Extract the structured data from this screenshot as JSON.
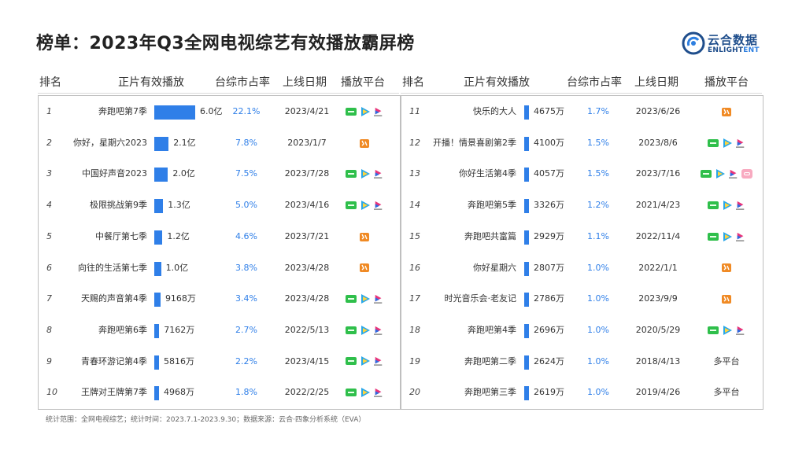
{
  "title": "榜单：2023年Q3全网电视综艺有效播放霸屏榜",
  "brand": {
    "name_cn": "云合数据",
    "name_en_main": "ENLIGHT",
    "name_en_accent": "ENT"
  },
  "headers": {
    "rank": "排名",
    "plays": "正片有效播放",
    "share": "台综市占率",
    "date": "上线日期",
    "platform": "播放平台"
  },
  "left_rows": [
    {
      "rank": "1",
      "name": "奔跑吧第7季",
      "plays": "6.0亿",
      "plays_value": 60000,
      "share": "22.1%",
      "date": "2023/4/21",
      "platforms": [
        "iqiyi-icon",
        "tencent-video-icon",
        "youku-icon"
      ]
    },
    {
      "rank": "2",
      "name": "你好，星期六2023",
      "plays": "2.1亿",
      "plays_value": 21000,
      "share": "7.8%",
      "date": "2023/1/7",
      "platforms": [
        "mango-tv-icon"
      ]
    },
    {
      "rank": "3",
      "name": "中国好声音2023",
      "plays": "2.0亿",
      "plays_value": 20000,
      "share": "7.5%",
      "date": "2023/7/28",
      "platforms": [
        "iqiyi-icon",
        "tencent-video-icon",
        "youku-icon"
      ]
    },
    {
      "rank": "4",
      "name": "极限挑战第9季",
      "plays": "1.3亿",
      "plays_value": 13000,
      "share": "5.0%",
      "date": "2023/4/16",
      "platforms": [
        "iqiyi-icon",
        "tencent-video-icon",
        "youku-icon"
      ]
    },
    {
      "rank": "5",
      "name": "中餐厅第七季",
      "plays": "1.2亿",
      "plays_value": 12000,
      "share": "4.6%",
      "date": "2023/7/21",
      "platforms": [
        "mango-tv-icon"
      ]
    },
    {
      "rank": "6",
      "name": "向往的生活第七季",
      "plays": "1.0亿",
      "plays_value": 10000,
      "share": "3.8%",
      "date": "2023/4/28",
      "platforms": [
        "mango-tv-icon"
      ]
    },
    {
      "rank": "7",
      "name": "天赐的声音第4季",
      "plays": "9168万",
      "plays_value": 9168,
      "share": "3.4%",
      "date": "2023/4/28",
      "platforms": [
        "iqiyi-icon",
        "tencent-video-icon",
        "youku-icon"
      ]
    },
    {
      "rank": "8",
      "name": "奔跑吧第6季",
      "plays": "7162万",
      "plays_value": 7162,
      "share": "2.7%",
      "date": "2022/5/13",
      "platforms": [
        "iqiyi-icon",
        "tencent-video-icon",
        "youku-icon"
      ]
    },
    {
      "rank": "9",
      "name": "青春环游记第4季",
      "plays": "5816万",
      "plays_value": 5816,
      "share": "2.2%",
      "date": "2023/4/15",
      "platforms": [
        "iqiyi-icon",
        "tencent-video-icon",
        "youku-icon"
      ]
    },
    {
      "rank": "10",
      "name": "王牌对王牌第7季",
      "plays": "4968万",
      "plays_value": 4968,
      "share": "1.8%",
      "date": "2022/2/25",
      "platforms": [
        "iqiyi-icon",
        "tencent-video-icon",
        "youku-icon"
      ]
    }
  ],
  "right_rows": [
    {
      "rank": "11",
      "name": "快乐的大人",
      "plays": "4675万",
      "plays_value": 4675,
      "share": "1.7%",
      "date": "2023/6/26",
      "platforms": [
        "mango-tv-icon"
      ]
    },
    {
      "rank": "12",
      "name": "开播！情景喜剧第2季",
      "plays": "4100万",
      "plays_value": 4100,
      "share": "1.5%",
      "date": "2023/8/6",
      "platforms": [
        "iqiyi-icon",
        "tencent-video-icon",
        "youku-icon"
      ]
    },
    {
      "rank": "13",
      "name": "你好生活第4季",
      "plays": "4057万",
      "plays_value": 4057,
      "share": "1.5%",
      "date": "2023/7/16",
      "platforms": [
        "iqiyi-icon",
        "tencent-video-icon",
        "youku-icon",
        "bilibili-icon"
      ]
    },
    {
      "rank": "14",
      "name": "奔跑吧第5季",
      "plays": "3326万",
      "plays_value": 3326,
      "share": "1.2%",
      "date": "2021/4/23",
      "platforms": [
        "iqiyi-icon",
        "tencent-video-icon",
        "youku-icon"
      ]
    },
    {
      "rank": "15",
      "name": "奔跑吧共富篇",
      "plays": "2929万",
      "plays_value": 2929,
      "share": "1.1%",
      "date": "2022/11/4",
      "platforms": [
        "iqiyi-icon",
        "tencent-video-icon",
        "youku-icon"
      ]
    },
    {
      "rank": "16",
      "name": "你好星期六",
      "plays": "2807万",
      "plays_value": 2807,
      "share": "1.0%",
      "date": "2022/1/1",
      "platforms": [
        "mango-tv-icon"
      ]
    },
    {
      "rank": "17",
      "name": "时光音乐会·老友记",
      "plays": "2786万",
      "plays_value": 2786,
      "share": "1.0%",
      "date": "2023/9/9",
      "platforms": [
        "mango-tv-icon"
      ]
    },
    {
      "rank": "18",
      "name": "奔跑吧第4季",
      "plays": "2696万",
      "plays_value": 2696,
      "share": "1.0%",
      "date": "2020/5/29",
      "platforms": [
        "iqiyi-icon",
        "tencent-video-icon",
        "youku-icon"
      ]
    },
    {
      "rank": "19",
      "name": "奔跑吧第二季",
      "plays": "2624万",
      "plays_value": 2624,
      "share": "1.0%",
      "date": "2018/4/13",
      "platform_text": "多平台"
    },
    {
      "rank": "20",
      "name": "奔跑吧第三季",
      "plays": "2619万",
      "plays_value": 2619,
      "share": "1.0%",
      "date": "2019/4/26",
      "platform_text": "多平台"
    }
  ],
  "footnote": "统计范围：全网电视综艺；统计时间：2023.7.1-2023.9.30；数据来源：云合·四象分析系统（EVA）",
  "colors": {
    "bar": "#2f7fe8",
    "share_text": "#2f7fe8",
    "iqiyi": "#2fbf4b",
    "mango": "#f08a24",
    "brand": "#1f4e8c"
  }
}
